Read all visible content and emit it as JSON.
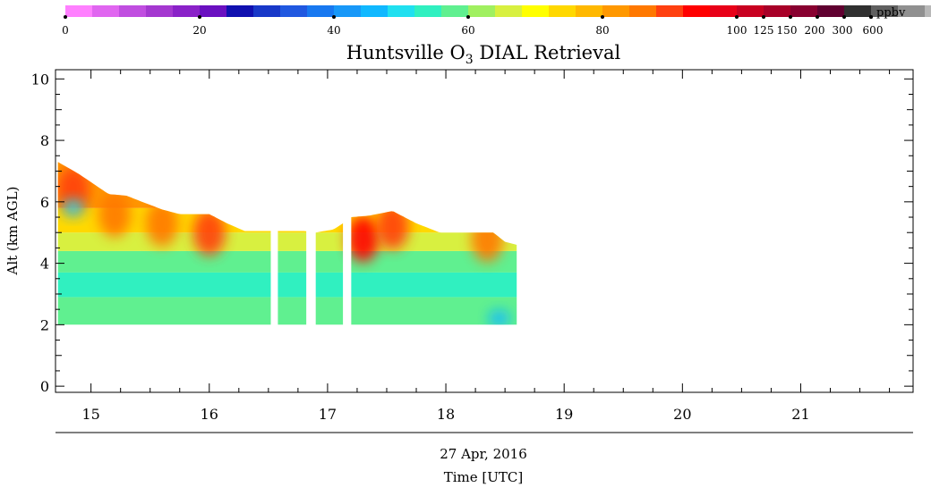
{
  "chart_data": {
    "type": "heatmap",
    "title_prefix": "Huntsville O",
    "title_subscript": "3",
    "title_suffix": " DIAL Retrieval",
    "ylabel": "Alt (km AGL)",
    "xlabel_date": "27 Apr, 2016",
    "xlabel": "Time [UTC]",
    "xlim": [
      14.7,
      21.95
    ],
    "ylim": [
      -0.2,
      10.3
    ],
    "x_ticks": [
      "15",
      "16",
      "17",
      "18",
      "19",
      "20",
      "21"
    ],
    "y_ticks": [
      "0",
      "2",
      "4",
      "6",
      "8",
      "10"
    ],
    "colorbar": {
      "unit": "ppbv",
      "tick_labels": [
        "0",
        "20",
        "40",
        "60",
        "80",
        "100",
        "125",
        "150",
        "200",
        "300",
        "600"
      ],
      "colors": [
        "#ff80ff",
        "#e066f0",
        "#c04ee0",
        "#a438d0",
        "#8a22c8",
        "#6a10c0",
        "#1010b0",
        "#1838c8",
        "#2058e0",
        "#1878f0",
        "#1898f8",
        "#10b8ff",
        "#20e0f0",
        "#30f0c0",
        "#60f090",
        "#a0f060",
        "#d8f040",
        "#ffff00",
        "#ffd800",
        "#ffb800",
        "#ff9800",
        "#ff7800",
        "#ff4010",
        "#ff0000",
        "#e80018",
        "#c80020",
        "#a80028",
        "#880030",
        "#600030",
        "#303030",
        "#606060",
        "#909090",
        "#b8b8b8",
        "#e0e0e0"
      ]
    },
    "retrieval": {
      "time_range": [
        14.72,
        18.6
      ],
      "bottom_alt_km": 2.0,
      "data_gaps": [
        [
          16.52,
          16.58
        ],
        [
          16.82,
          16.9
        ],
        [
          17.13,
          17.2
        ]
      ],
      "top_profile": {
        "time": [
          14.72,
          14.9,
          15.15,
          15.3,
          15.5,
          15.6,
          15.75,
          16.0,
          16.15,
          16.3,
          16.52,
          16.58,
          16.8,
          16.9,
          17.05,
          17.13,
          17.2,
          17.35,
          17.55,
          17.75,
          17.95,
          18.2,
          18.4,
          18.5,
          18.6
        ],
        "alt_km": [
          7.3,
          6.9,
          6.25,
          6.2,
          5.9,
          5.75,
          5.6,
          5.6,
          5.3,
          5.05,
          5.05,
          5.05,
          5.05,
          5.0,
          5.1,
          5.3,
          5.5,
          5.55,
          5.7,
          5.3,
          5.0,
          5.0,
          5.0,
          4.7,
          4.6
        ]
      },
      "layers": [
        {
          "from_km": 2.0,
          "to_km": 2.9,
          "ppbv": 56
        },
        {
          "from_km": 2.9,
          "to_km": 3.7,
          "ppbv": 53
        },
        {
          "from_km": 3.7,
          "to_km": 4.4,
          "ppbv": 59
        },
        {
          "from_km": 4.4,
          "to_km": 5.0,
          "ppbv": 64
        },
        {
          "from_km": 5.0,
          "to_km": 5.8,
          "ppbv": 72
        },
        {
          "from_km": 5.8,
          "to_km": 7.3,
          "ppbv": 80
        }
      ],
      "enhancements": [
        {
          "time": 14.85,
          "alt_km": 6.4,
          "ppbv": 88
        },
        {
          "time": 15.2,
          "alt_km": 5.6,
          "ppbv": 86
        },
        {
          "time": 15.6,
          "alt_km": 5.3,
          "ppbv": 84
        },
        {
          "time": 16.0,
          "alt_km": 5.0,
          "ppbv": 90
        },
        {
          "time": 17.3,
          "alt_km": 4.8,
          "ppbv": 95
        },
        {
          "time": 17.55,
          "alt_km": 5.2,
          "ppbv": 88
        },
        {
          "time": 18.35,
          "alt_km": 4.8,
          "ppbv": 84
        }
      ],
      "low_pockets": [
        {
          "time": 14.85,
          "alt_km": 5.8,
          "ppbv": 48
        },
        {
          "time": 18.45,
          "alt_km": 2.2,
          "ppbv": 47
        }
      ]
    }
  }
}
